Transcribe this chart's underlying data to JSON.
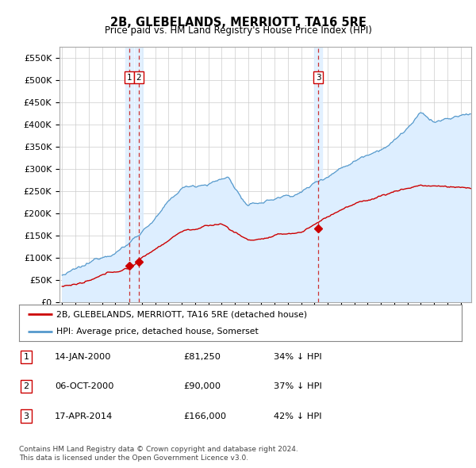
{
  "title": "2B, GLEBELANDS, MERRIOTT, TA16 5RE",
  "subtitle": "Price paid vs. HM Land Registry's House Price Index (HPI)",
  "ylabel_ticks": [
    "£0",
    "£50K",
    "£100K",
    "£150K",
    "£200K",
    "£250K",
    "£300K",
    "£350K",
    "£400K",
    "£450K",
    "£500K",
    "£550K"
  ],
  "ylabel_values": [
    0,
    50000,
    100000,
    150000,
    200000,
    250000,
    300000,
    350000,
    400000,
    450000,
    500000,
    550000
  ],
  "xmin": 1994.8,
  "xmax": 2025.8,
  "ymin": 0,
  "ymax": 575000,
  "sale_color": "#cc0000",
  "hpi_color": "#5599cc",
  "hpi_fill_color": "#ddeeff",
  "vline_color": "#cc3333",
  "vband_color": "#ddeeff",
  "marker_color": "#cc0000",
  "sale_transactions": [
    {
      "date_num": 2000.04,
      "price": 81250,
      "label": "1"
    },
    {
      "date_num": 2000.76,
      "price": 90000,
      "label": "2"
    },
    {
      "date_num": 2014.29,
      "price": 166000,
      "label": "3"
    }
  ],
  "legend_sale_label": "2B, GLEBELANDS, MERRIOTT, TA16 5RE (detached house)",
  "legend_hpi_label": "HPI: Average price, detached house, Somerset",
  "table_rows": [
    {
      "num": "1",
      "date": "14-JAN-2000",
      "price": "£81,250",
      "hpi": "34% ↓ HPI"
    },
    {
      "num": "2",
      "date": "06-OCT-2000",
      "price": "£90,000",
      "hpi": "37% ↓ HPI"
    },
    {
      "num": "3",
      "date": "17-APR-2014",
      "price": "£166,000",
      "hpi": "42% ↓ HPI"
    }
  ],
  "footnote1": "Contains HM Land Registry data © Crown copyright and database right 2024.",
  "footnote2": "This data is licensed under the Open Government Licence v3.0.",
  "background_color": "#ffffff",
  "plot_bg_color": "#ffffff",
  "grid_color": "#cccccc"
}
